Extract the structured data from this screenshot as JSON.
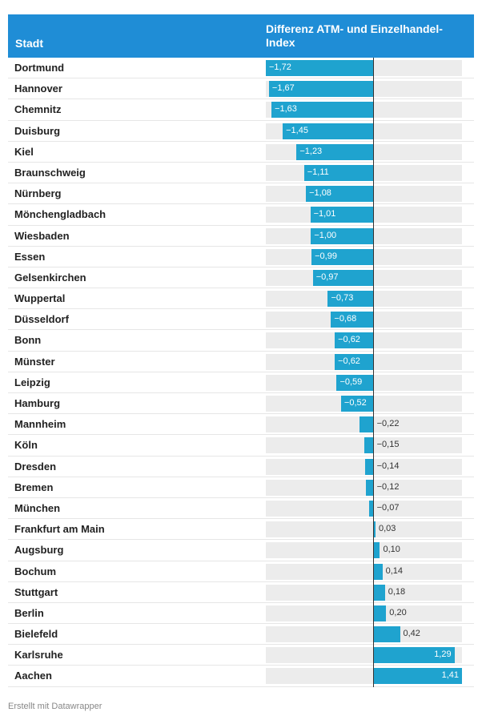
{
  "header": {
    "city_label": "Stadt",
    "metric_label": "Differenz ATM- und Einzelhandel-Index"
  },
  "colors": {
    "header_bg": "#1f8dd6",
    "bar": "#1fa3cf",
    "track": "#ececec"
  },
  "chart_data": {
    "type": "bar",
    "orientation": "horizontal",
    "title": "Differenz ATM- und Einzelhandel-Index",
    "xlim": [
      -1.72,
      1.41
    ],
    "categories": [
      "Dortmund",
      "Hannover",
      "Chemnitz",
      "Duisburg",
      "Kiel",
      "Braunschweig",
      "Nürnberg",
      "Mönchengladbach",
      "Wiesbaden",
      "Essen",
      "Gelsenkirchen",
      "Wuppertal",
      "Düsseldorf",
      "Bonn",
      "Münster",
      "Leipzig",
      "Hamburg",
      "Mannheim",
      "Köln",
      "Dresden",
      "Bremen",
      "München",
      "Frankfurt am Main",
      "Augsburg",
      "Bochum",
      "Stuttgart",
      "Berlin",
      "Bielefeld",
      "Karlsruhe",
      "Aachen"
    ],
    "values": [
      -1.72,
      -1.67,
      -1.63,
      -1.45,
      -1.23,
      -1.11,
      -1.08,
      -1.01,
      -1.0,
      -0.99,
      -0.97,
      -0.73,
      -0.68,
      -0.62,
      -0.62,
      -0.59,
      -0.52,
      -0.22,
      -0.15,
      -0.14,
      -0.12,
      -0.07,
      0.03,
      0.1,
      0.14,
      0.18,
      0.2,
      0.42,
      1.29,
      1.41
    ],
    "labels": [
      "−1,72",
      "−1,67",
      "−1,63",
      "−1,45",
      "−1,23",
      "−1,11",
      "−1,08",
      "−1,01",
      "−1,00",
      "−0,99",
      "−0,97",
      "−0,73",
      "−0,68",
      "−0,62",
      "−0,62",
      "−0,59",
      "−0,52",
      "−0,22",
      "−0,15",
      "−0,14",
      "−0,12",
      "−0,07",
      "0,03",
      "0,10",
      "0,14",
      "0,18",
      "0,20",
      "0,42",
      "1,29",
      "1,41"
    ]
  },
  "footer": {
    "credit": "Erstellt mit Datawrapper"
  }
}
